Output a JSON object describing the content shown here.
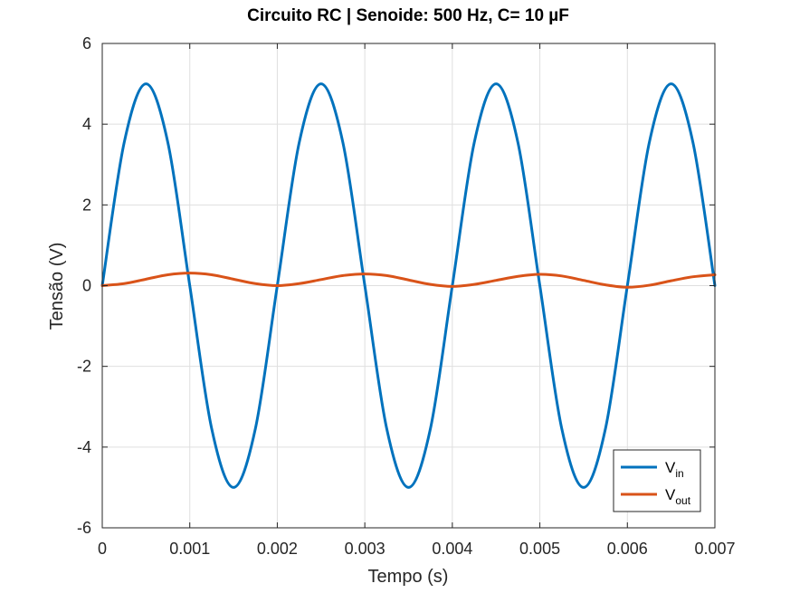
{
  "chart_data": {
    "type": "line",
    "title": "Circuito RC | Senoide: 500 Hz, C= 10 µF",
    "xlabel": "Tempo (s)",
    "ylabel": "Tensão (V)",
    "xlim": [
      0,
      0.007
    ],
    "ylim": [
      -6,
      6
    ],
    "xticks": [
      0,
      0.001,
      0.002,
      0.003,
      0.004,
      0.005,
      0.006,
      0.007
    ],
    "xtick_labels": [
      "0",
      "0.001",
      "0.002",
      "0.003",
      "0.004",
      "0.005",
      "0.006",
      "0.007"
    ],
    "yticks": [
      -6,
      -4,
      -2,
      0,
      2,
      4,
      6
    ],
    "ytick_labels": [
      "-6",
      "-4",
      "-2",
      "0",
      "2",
      "4",
      "6"
    ],
    "grid": true,
    "legend_position": "bottom-right",
    "series": [
      {
        "name_main": "V",
        "name_sub": "in",
        "color": "#0072BD",
        "x": [
          0,
          0.00025,
          0.0005,
          0.00075,
          0.001,
          0.00125,
          0.0015,
          0.00175,
          0.002,
          0.00225,
          0.0025,
          0.00275,
          0.003,
          0.00325,
          0.0035,
          0.00375,
          0.004,
          0.00425,
          0.0045,
          0.00475,
          0.005,
          0.00525,
          0.0055,
          0.00575,
          0.006,
          0.00625,
          0.0065,
          0.00675,
          0.007
        ],
        "y": [
          0,
          3.54,
          5.0,
          3.54,
          0,
          -3.54,
          -5.0,
          -3.54,
          0,
          3.54,
          5.0,
          3.54,
          0,
          -3.54,
          -5.0,
          -3.54,
          0,
          3.54,
          5.0,
          3.54,
          0,
          -3.54,
          -5.0,
          -3.54,
          0,
          3.54,
          5.0,
          3.54,
          0
        ]
      },
      {
        "name_main": "V",
        "name_sub": "out",
        "color": "#D95319",
        "x": [
          0,
          0.00025,
          0.0005,
          0.00075,
          0.001,
          0.00125,
          0.0015,
          0.00175,
          0.002,
          0.00225,
          0.0025,
          0.00275,
          0.003,
          0.00325,
          0.0035,
          0.00375,
          0.004,
          0.00425,
          0.0045,
          0.00475,
          0.005,
          0.00525,
          0.0055,
          0.00575,
          0.006,
          0.00625,
          0.0065,
          0.00675,
          0.007
        ],
        "y": [
          0,
          0.05,
          0.16,
          0.27,
          0.31,
          0.27,
          0.16,
          0.05,
          0.0,
          0.05,
          0.15,
          0.25,
          0.29,
          0.25,
          0.14,
          0.03,
          -0.02,
          0.03,
          0.13,
          0.23,
          0.28,
          0.24,
          0.13,
          0.02,
          -0.04,
          0.01,
          0.12,
          0.22,
          0.27
        ]
      }
    ]
  }
}
